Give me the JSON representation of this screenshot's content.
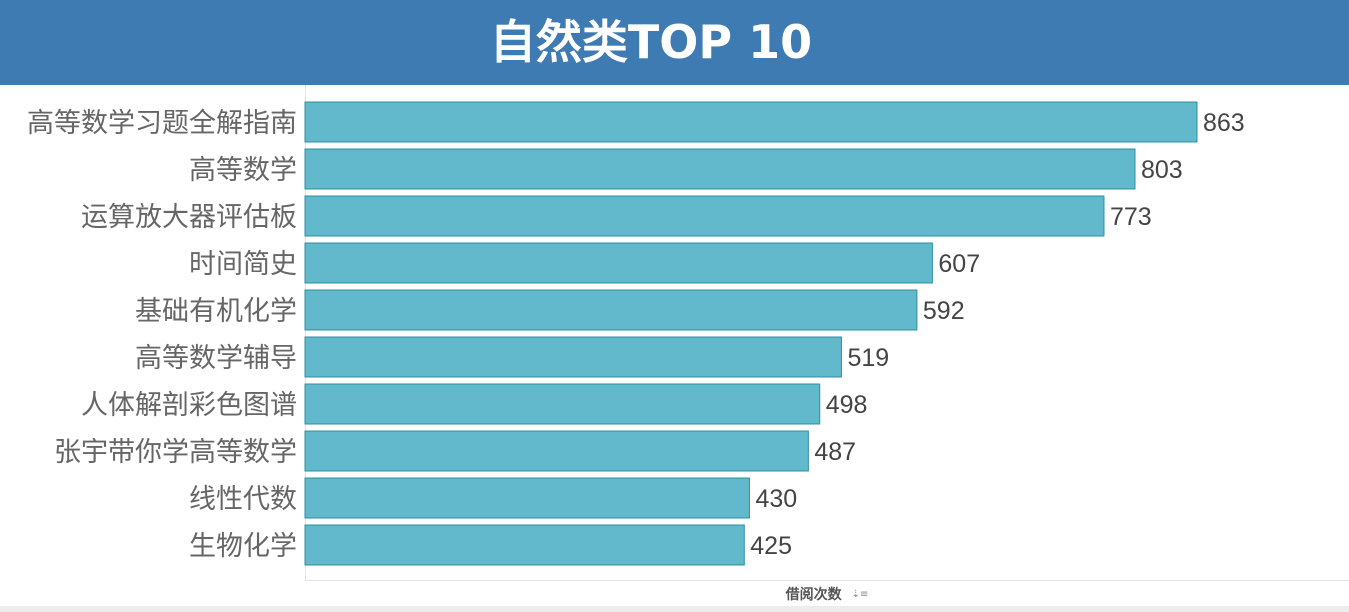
{
  "header": {
    "title": "自然类TOP 10"
  },
  "x_axis": {
    "label": "借阅次数",
    "sort_icon": "sort-descending-icon"
  },
  "colors": {
    "header_bg": "#3e7bb3",
    "bar_fill": "#62b9cb",
    "bar_stroke": "#2c8fa5"
  },
  "chart_data": {
    "type": "bar",
    "orientation": "horizontal",
    "title": "自然类TOP 10",
    "xlabel": "借阅次数",
    "ylabel": "",
    "categories": [
      "高等数学习题全解指南",
      "高等数学",
      "运算放大器评估板",
      "时间简史",
      "基础有机化学",
      "高等数学辅导",
      "人体解剖彩色图谱",
      "张宇带你学高等数学",
      "线性代数",
      "生物化学"
    ],
    "values": [
      863,
      803,
      773,
      607,
      592,
      519,
      498,
      487,
      430,
      425
    ],
    "data_labels": true,
    "grid": false,
    "legend": "none"
  }
}
